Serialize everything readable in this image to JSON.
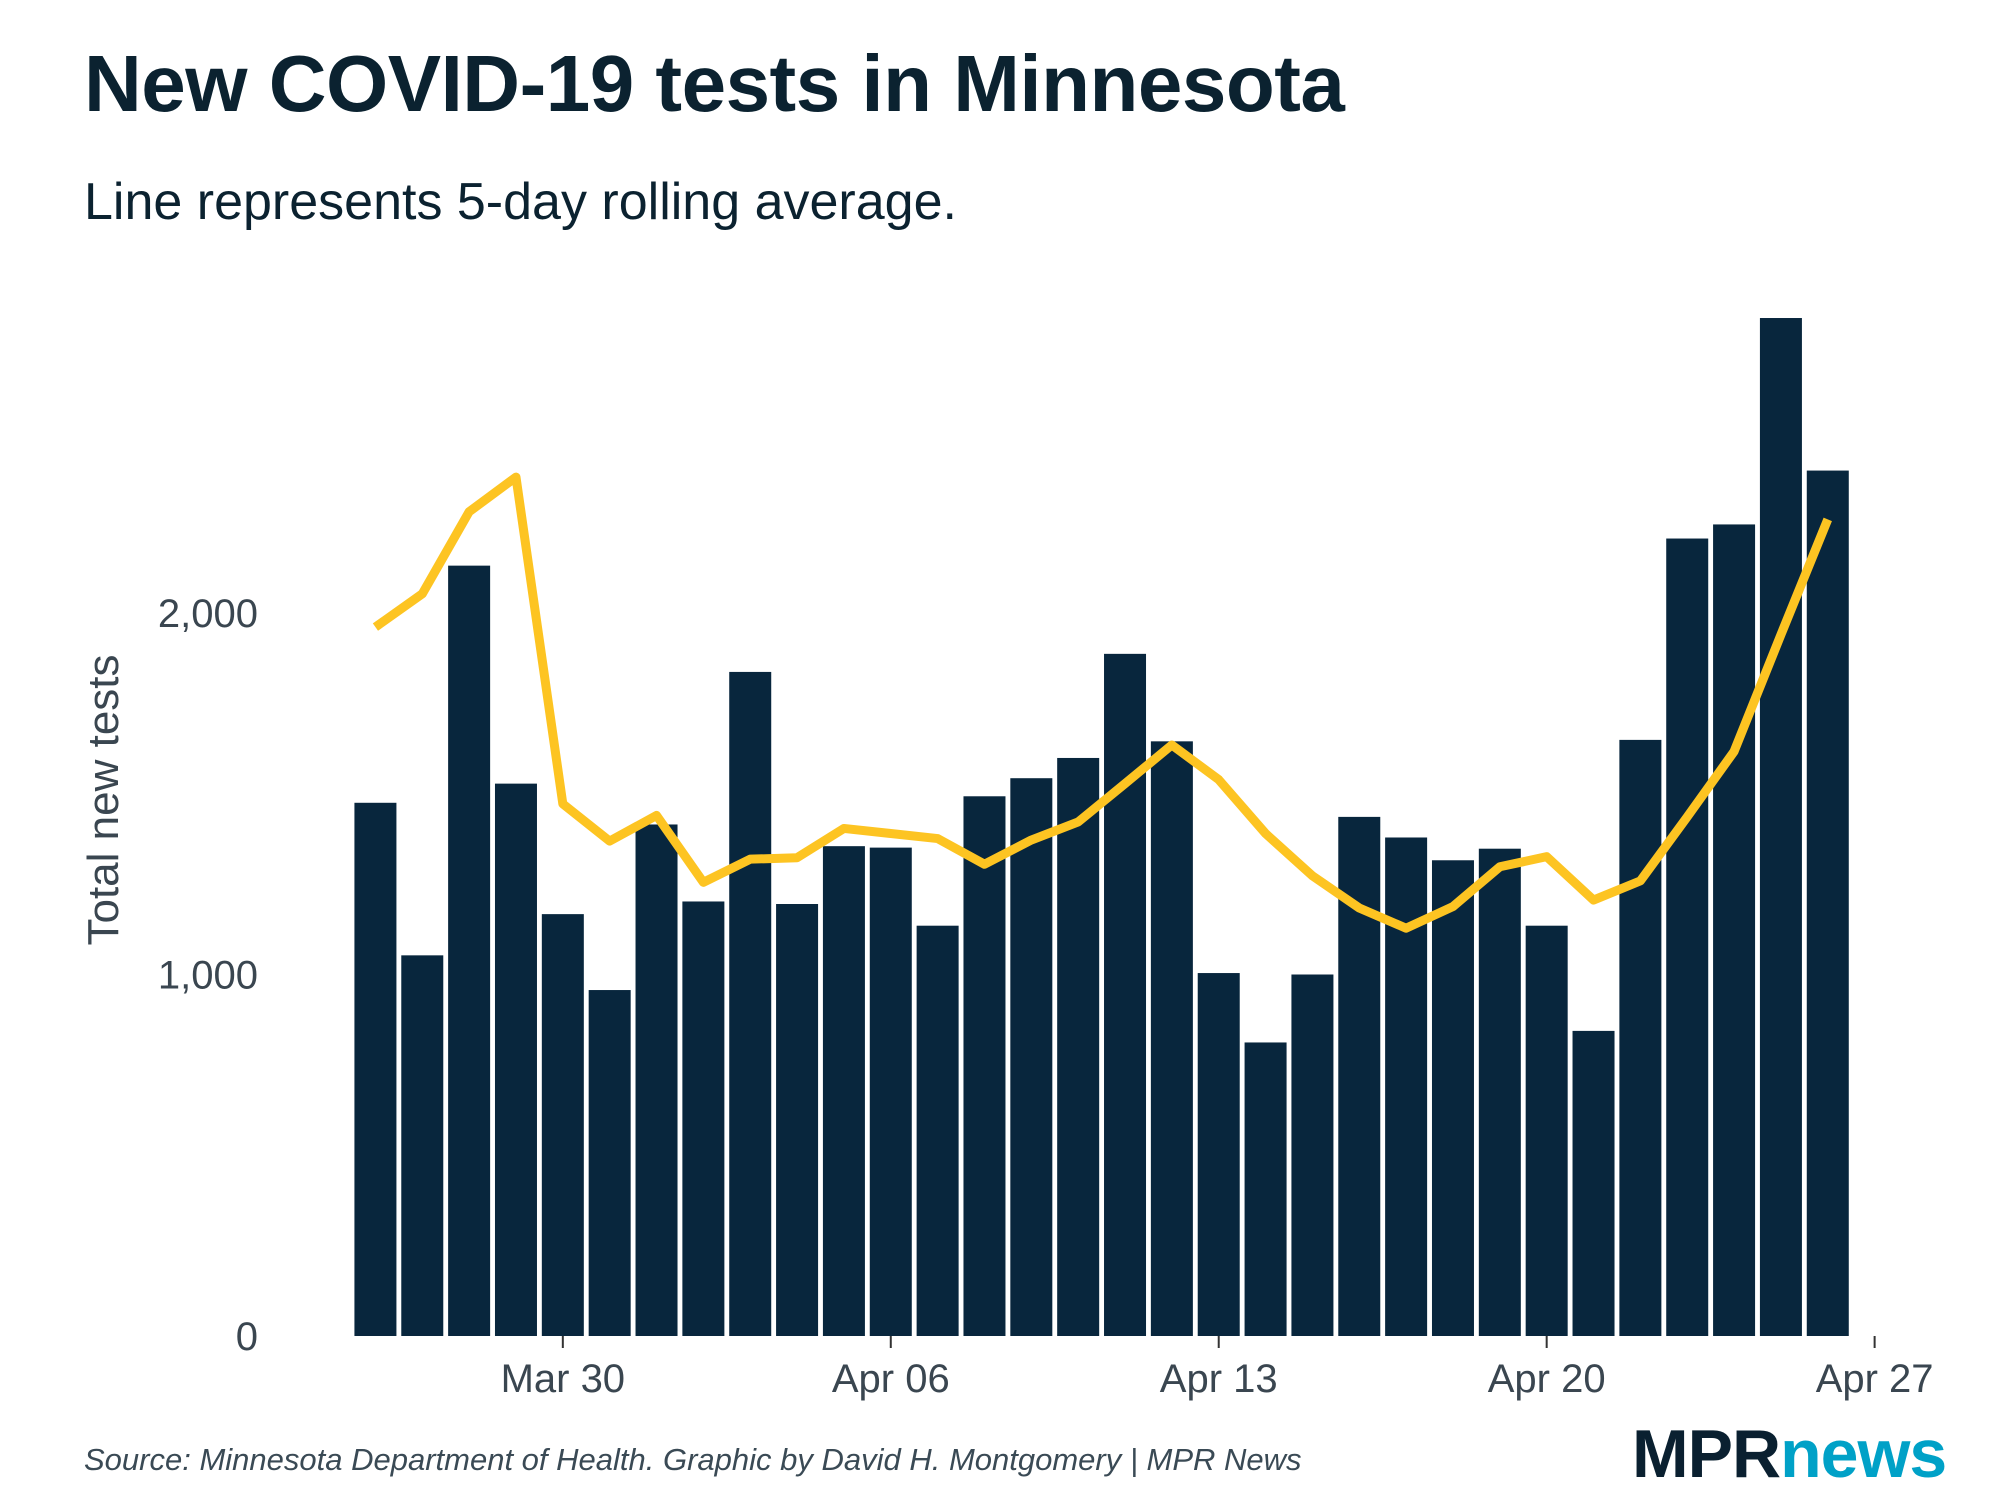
{
  "title": "New COVID-19 tests in Minnesota",
  "subtitle": "Line represents 5-day rolling average.",
  "source": "Source: Minnesota Department of Health. Graphic by David H. Montgomery | MPR News",
  "logo": {
    "mpr": "MPR",
    "news": "news"
  },
  "chart_data": {
    "type": "bar",
    "title": "New COVID-19 tests in Minnesota",
    "subtitle": "Line represents 5-day rolling average.",
    "xlabel": "",
    "ylabel": "Total new tests",
    "ylim": [
      0,
      2900
    ],
    "yticks": [
      0,
      1000,
      2000
    ],
    "ytick_labels": [
      "0",
      "1,000",
      "2,000"
    ],
    "xticks": [
      "Mar 30",
      "Apr 06",
      "Apr 13",
      "Apr 20",
      "Apr 27"
    ],
    "xtick_index": [
      4,
      11,
      18,
      25,
      32
    ],
    "grid": false,
    "categories": [
      "Mar 26",
      "Mar 27",
      "Mar 28",
      "Mar 29",
      "Mar 30",
      "Mar 31",
      "Apr 01",
      "Apr 02",
      "Apr 03",
      "Apr 04",
      "Apr 05",
      "Apr 06",
      "Apr 07",
      "Apr 08",
      "Apr 09",
      "Apr 10",
      "Apr 11",
      "Apr 12",
      "Apr 13",
      "Apr 14",
      "Apr 15",
      "Apr 16",
      "Apr 17",
      "Apr 18",
      "Apr 19",
      "Apr 20",
      "Apr 21",
      "Apr 22",
      "Apr 23",
      "Apr 24",
      "Apr 25",
      "Apr 26"
    ],
    "series": [
      {
        "type": "bar",
        "color": "#08263d",
        "values": [
          1475,
          1053,
          2131,
          1528,
          1167,
          957,
          1415,
          1202,
          1837,
          1195,
          1355,
          1351,
          1135,
          1493,
          1543,
          1599,
          1887,
          1645,
          1004,
          812,
          1000,
          1436,
          1379,
          1316,
          1348,
          1135,
          844,
          1649,
          2206,
          2245,
          2816,
          2394
        ]
      },
      {
        "type": "line",
        "color": "#fdc422",
        "values": [
          1961,
          2053,
          2280,
          2376,
          1472,
          1369,
          1440,
          1255,
          1319,
          1323,
          1404,
          1390,
          1376,
          1305,
          1372,
          1422,
          1528,
          1635,
          1539,
          1390,
          1273,
          1184,
          1128,
          1188,
          1298,
          1326,
          1206,
          1259,
          1436,
          1617,
          1940,
          2259
        ]
      }
    ]
  }
}
